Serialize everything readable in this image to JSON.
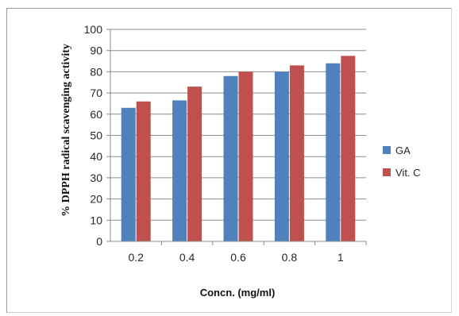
{
  "chart_data": {
    "type": "bar",
    "title": "",
    "xlabel": "Concn. (mg/ml)",
    "ylabel": "% DPPH radical scavenging activity",
    "categories": [
      "0.2",
      "0.4",
      "0.6",
      "0.8",
      "1"
    ],
    "series": [
      {
        "name": "GA",
        "color": "#4f81bd",
        "values": [
          63,
          66.5,
          78,
          80,
          84
        ]
      },
      {
        "name": "Vit. C",
        "color": "#c0504d",
        "values": [
          66,
          73,
          80,
          83,
          87.5
        ]
      }
    ],
    "ylim": [
      0,
      100
    ],
    "yticks": [
      "0",
      "10",
      "20",
      "30",
      "40",
      "50",
      "60",
      "70",
      "80",
      "90",
      "100"
    ],
    "grid": true,
    "legend": "right"
  }
}
